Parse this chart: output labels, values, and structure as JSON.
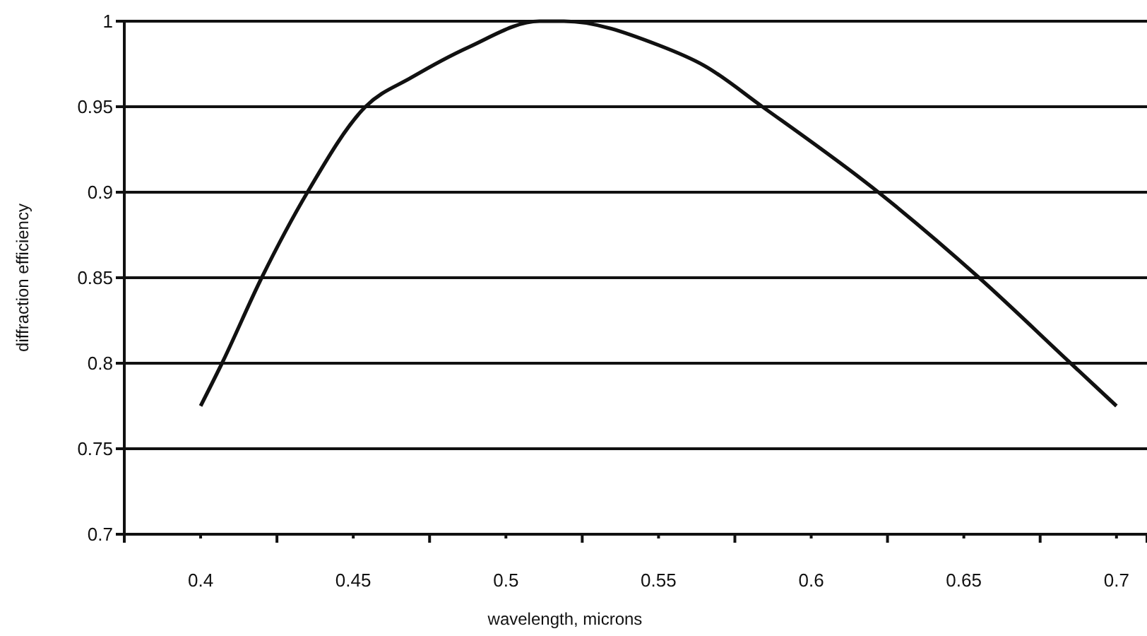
{
  "chart_data": {
    "type": "line",
    "xlabel": "wavelength, microns",
    "ylabel": "diffraction efficiency",
    "xlim": [
      0.375,
      0.71
    ],
    "ylim": [
      0.7,
      1
    ],
    "xticks": [
      {
        "value": 0.4,
        "label": "0.4"
      },
      {
        "value": 0.45,
        "label": "0.45"
      },
      {
        "value": 0.5,
        "label": "0.5"
      },
      {
        "value": 0.55,
        "label": "0.55"
      },
      {
        "value": 0.6,
        "label": "0.6"
      },
      {
        "value": 0.65,
        "label": "0.65"
      },
      {
        "value": 0.7,
        "label": "0.7"
      },
      {
        "value": 0.425,
        "label": null
      },
      {
        "value": 0.475,
        "label": null
      },
      {
        "value": 0.525,
        "label": null
      },
      {
        "value": 0.575,
        "label": null
      },
      {
        "value": 0.625,
        "label": null
      },
      {
        "value": 0.675,
        "label": null
      }
    ],
    "yticks": [
      0.7,
      0.75,
      0.8,
      0.85,
      0.9,
      0.95,
      1
    ],
    "grid": "y",
    "marker": "none",
    "line_style": "solid",
    "series": [
      {
        "color": "#111111",
        "x": [
          0.4,
          0.407,
          0.42,
          0.435,
          0.454,
          0.469,
          0.488,
          0.511,
          0.519,
          0.55,
          0.565,
          0.584,
          0.622,
          0.655,
          0.685,
          0.7
        ],
        "values": [
          0.775,
          0.8,
          0.85,
          0.9,
          0.95,
          0.967,
          0.985,
          1,
          1,
          0.986,
          0.974,
          0.95,
          0.9,
          0.85,
          0.8,
          0.775
        ]
      }
    ]
  }
}
